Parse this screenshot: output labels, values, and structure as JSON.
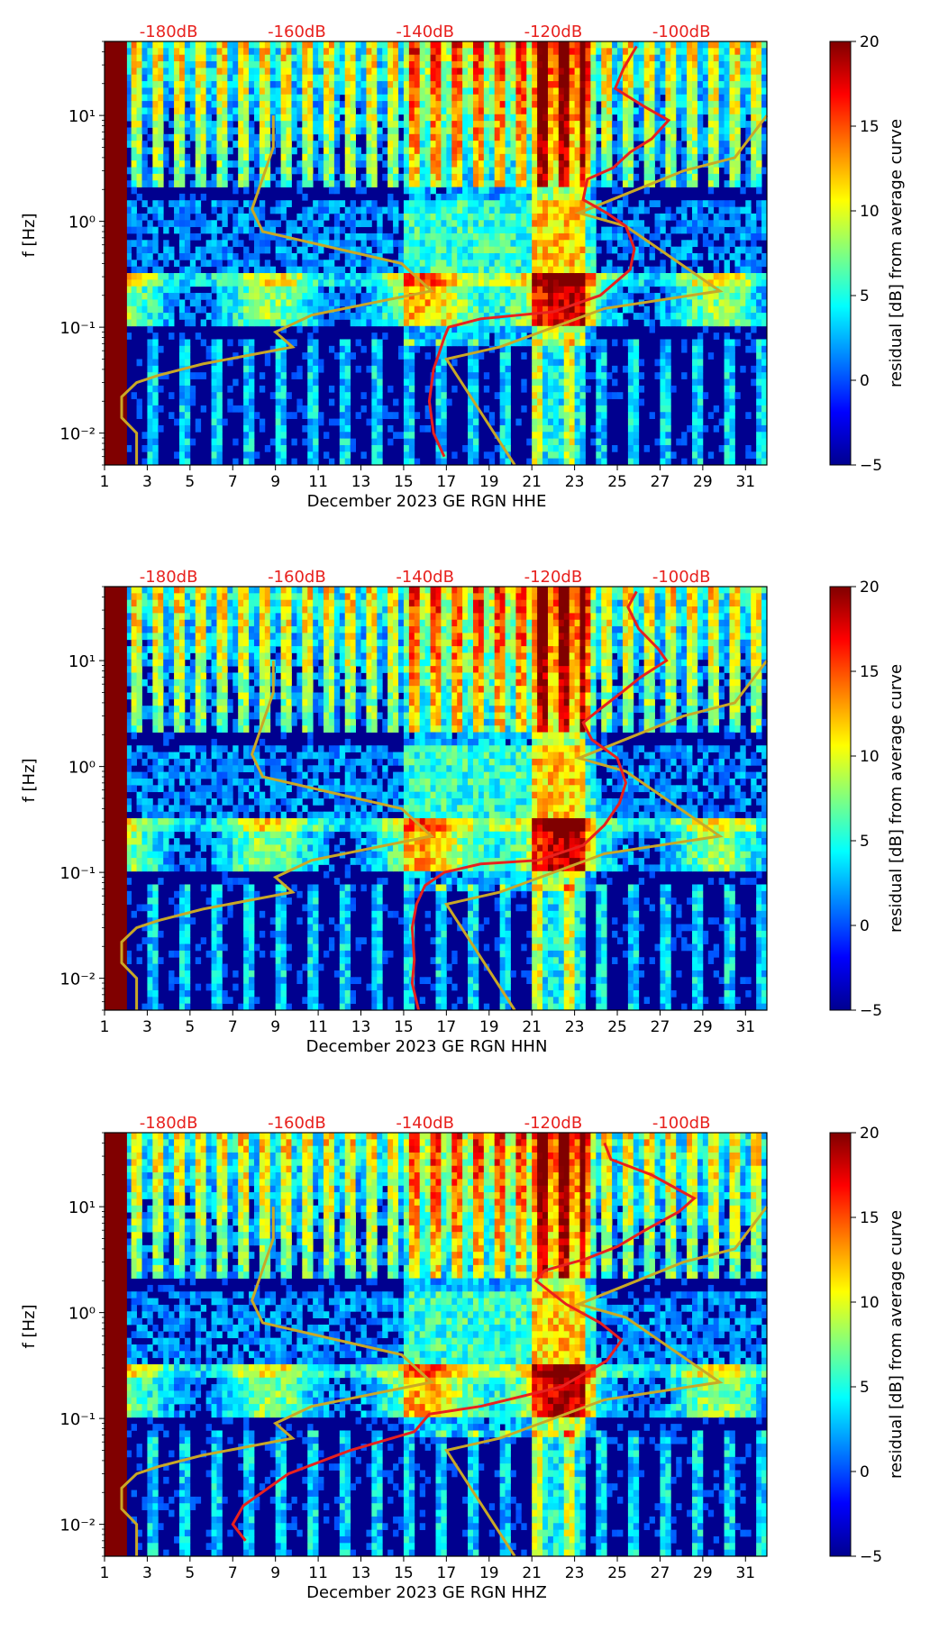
{
  "colors": {
    "db_label": "#e8211e",
    "median_curve": "#e8211e",
    "noise_model": "#c9a826",
    "background_field": "#00008f"
  },
  "colorbar": {
    "label": "residual [dB] from average curve",
    "range": [
      -5,
      20
    ],
    "ticks": [
      "20",
      "15",
      "10",
      "5",
      "0",
      "−5"
    ],
    "tick_values": [
      20,
      15,
      10,
      5,
      0,
      -5
    ]
  },
  "chart_data": [
    {
      "type": "heatmap",
      "title": "",
      "xlabel": "December 2023 GE RGN  HHE",
      "ylabel": "f [Hz]",
      "x_ticks": [
        "1",
        "3",
        "5",
        "7",
        "9",
        "11",
        "13",
        "15",
        "17",
        "19",
        "21",
        "23",
        "25",
        "27",
        "29",
        "31"
      ],
      "x_range": [
        1,
        32
      ],
      "y_ticks": [
        "10¹",
        "10⁰",
        "10⁻¹",
        "10⁻²"
      ],
      "y_tick_values": [
        10,
        1,
        0.1,
        0.01
      ],
      "y_range": [
        0.005,
        50
      ],
      "top_labels": [
        "-180dB",
        "-160dB",
        "-140dB",
        "-120dB",
        "-100dB"
      ],
      "top_label_x": [
        4,
        10,
        16,
        22,
        28
      ],
      "median_curve": {
        "x": [
          25.9,
          25.3,
          24.9,
          26.3,
          27.4,
          26.6,
          25.6,
          24.8,
          23.6,
          23.4,
          24.5,
          25.4,
          25.8,
          25.6,
          24.2,
          22.0,
          18.6,
          17.1,
          16.9,
          16.7,
          16.4,
          16.2,
          16.4,
          16.9
        ],
        "y": [
          45,
          28,
          18,
          12,
          9,
          6,
          4.5,
          3.2,
          2.5,
          1.6,
          1.2,
          0.9,
          0.55,
          0.35,
          0.2,
          0.14,
          0.12,
          0.1,
          0.08,
          0.06,
          0.04,
          0.02,
          0.01,
          0.006
        ]
      },
      "noise_model": {
        "x": [
          8.9,
          8.9,
          7.9,
          8.4,
          14.9,
          16.3,
          10.7,
          9.0,
          9.8,
          5.6,
          3.5,
          2.5,
          1.8,
          1.8,
          2.5,
          2.5
        ],
        "y": [
          10,
          5,
          1.3,
          0.8,
          0.4,
          0.22,
          0.13,
          0.09,
          0.065,
          0.045,
          0.035,
          0.03,
          0.022,
          0.014,
          0.01,
          0.005
        ]
      },
      "noise_model_high": {
        "x": [
          32.0,
          30.5,
          28.1,
          23.2,
          25.4,
          29.8,
          24.4,
          19.5,
          17.0,
          20.2
        ],
        "y": [
          10,
          4,
          3,
          1.2,
          0.9,
          0.22,
          0.15,
          0.065,
          0.05,
          0.005
        ]
      }
    },
    {
      "type": "heatmap",
      "title": "",
      "xlabel": "December 2023 GE RGN  HHN",
      "ylabel": "f [Hz]",
      "x_ticks": [
        "1",
        "3",
        "5",
        "7",
        "9",
        "11",
        "13",
        "15",
        "17",
        "19",
        "21",
        "23",
        "25",
        "27",
        "29",
        "31"
      ],
      "x_range": [
        1,
        32
      ],
      "y_ticks": [
        "10¹",
        "10⁰",
        "10⁻¹",
        "10⁻²"
      ],
      "y_tick_values": [
        10,
        1,
        0.1,
        0.01
      ],
      "y_range": [
        0.005,
        50
      ],
      "top_labels": [
        "-180dB",
        "-160dB",
        "-140dB",
        "-120dB",
        "-100dB"
      ],
      "top_label_x": [
        4,
        10,
        16,
        22,
        28
      ],
      "median_curve": {
        "x": [
          25.9,
          25.5,
          26.0,
          26.9,
          27.3,
          26.1,
          25.2,
          24.2,
          23.4,
          23.8,
          25.0,
          25.4,
          25.1,
          24.4,
          23.4,
          21.3,
          18.6,
          16.9,
          16.0,
          15.6,
          15.4,
          15.5,
          15.4,
          15.7
        ],
        "y": [
          45,
          32,
          20,
          13,
          10,
          7,
          5,
          3.5,
          2.6,
          1.8,
          1.2,
          0.7,
          0.45,
          0.28,
          0.18,
          0.13,
          0.12,
          0.1,
          0.075,
          0.05,
          0.03,
          0.015,
          0.009,
          0.005
        ]
      },
      "noise_model": {
        "x": [
          8.9,
          8.9,
          7.9,
          8.4,
          14.9,
          16.3,
          10.7,
          9.0,
          9.8,
          5.6,
          3.5,
          2.5,
          1.8,
          1.8,
          2.5,
          2.5
        ],
        "y": [
          10,
          5,
          1.3,
          0.8,
          0.4,
          0.22,
          0.13,
          0.09,
          0.065,
          0.045,
          0.035,
          0.03,
          0.022,
          0.014,
          0.01,
          0.005
        ]
      },
      "noise_model_high": {
        "x": [
          32.0,
          30.5,
          28.1,
          23.2,
          25.4,
          29.8,
          24.4,
          19.5,
          17.0,
          20.2
        ],
        "y": [
          10,
          4,
          3,
          1.2,
          0.9,
          0.22,
          0.15,
          0.065,
          0.05,
          0.005
        ]
      }
    },
    {
      "type": "heatmap",
      "title": "",
      "xlabel": "December 2023 GE RGN  HHZ",
      "ylabel": "f [Hz]",
      "x_ticks": [
        "1",
        "3",
        "5",
        "7",
        "9",
        "11",
        "13",
        "15",
        "17",
        "19",
        "21",
        "23",
        "25",
        "27",
        "29",
        "31"
      ],
      "x_range": [
        1,
        32
      ],
      "y_ticks": [
        "10¹",
        "10⁰",
        "10⁻¹",
        "10⁻²"
      ],
      "y_tick_values": [
        10,
        1,
        0.1,
        0.01
      ],
      "y_range": [
        0.005,
        50
      ],
      "top_labels": [
        "-180dB",
        "-160dB",
        "-140dB",
        "-120dB",
        "-100dB"
      ],
      "top_label_x": [
        4,
        10,
        16,
        22,
        28
      ],
      "median_curve": {
        "x": [
          24.4,
          24.7,
          26.6,
          28.6,
          27.9,
          26.3,
          25.0,
          23.5,
          21.6,
          21.2,
          22.6,
          24.2,
          25.2,
          24.5,
          22.4,
          18.6,
          16.2,
          15.5,
          12.5,
          9.6,
          7.5,
          7.0,
          7.6
        ],
        "y": [
          40,
          28,
          20,
          12,
          9,
          6,
          4.2,
          3.2,
          2.5,
          2.0,
          1.2,
          0.8,
          0.55,
          0.35,
          0.2,
          0.13,
          0.11,
          0.075,
          0.05,
          0.03,
          0.015,
          0.01,
          0.007
        ]
      },
      "noise_model": {
        "x": [
          8.9,
          8.9,
          7.9,
          8.4,
          14.9,
          16.3,
          10.7,
          9.0,
          9.8,
          5.6,
          3.5,
          2.5,
          1.8,
          1.8,
          2.5,
          2.5
        ],
        "y": [
          10,
          5,
          1.3,
          0.8,
          0.4,
          0.22,
          0.13,
          0.09,
          0.065,
          0.045,
          0.035,
          0.03,
          0.022,
          0.014,
          0.01,
          0.005
        ]
      },
      "noise_model_high": {
        "x": [
          32.0,
          30.5,
          28.1,
          23.2,
          25.4,
          29.8,
          24.4,
          19.5,
          17.0,
          20.2
        ],
        "y": [
          10,
          4,
          3,
          1.2,
          0.9,
          0.22,
          0.15,
          0.065,
          0.05,
          0.005
        ]
      }
    }
  ]
}
